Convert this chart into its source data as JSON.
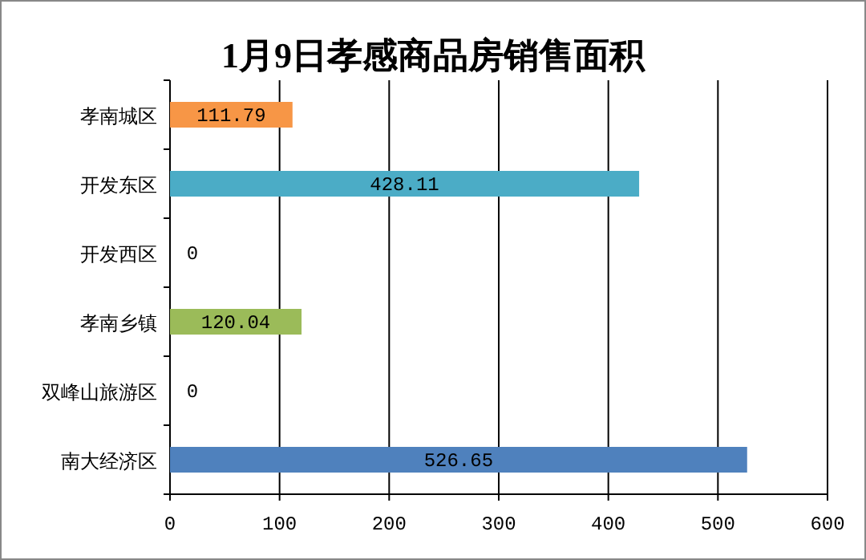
{
  "chart_data": {
    "type": "bar",
    "orientation": "horizontal",
    "title": "1月9日孝感商品房销售面积",
    "categories": [
      "孝南城区",
      "开发东区",
      "开发西区",
      "孝南乡镇",
      "双峰山旅游区",
      "南大经济区"
    ],
    "values": [
      111.79,
      428.11,
      0,
      120.04,
      0,
      526.65
    ],
    "colors": [
      "#f79646",
      "#4bacc6",
      "#9bbb59",
      "#9bbb59",
      "#4f81bd",
      "#4f81bd"
    ],
    "xlim": [
      0,
      600
    ],
    "xticks": [
      0,
      100,
      200,
      300,
      400,
      500,
      600
    ],
    "grid": "x",
    "data_labels": true
  }
}
